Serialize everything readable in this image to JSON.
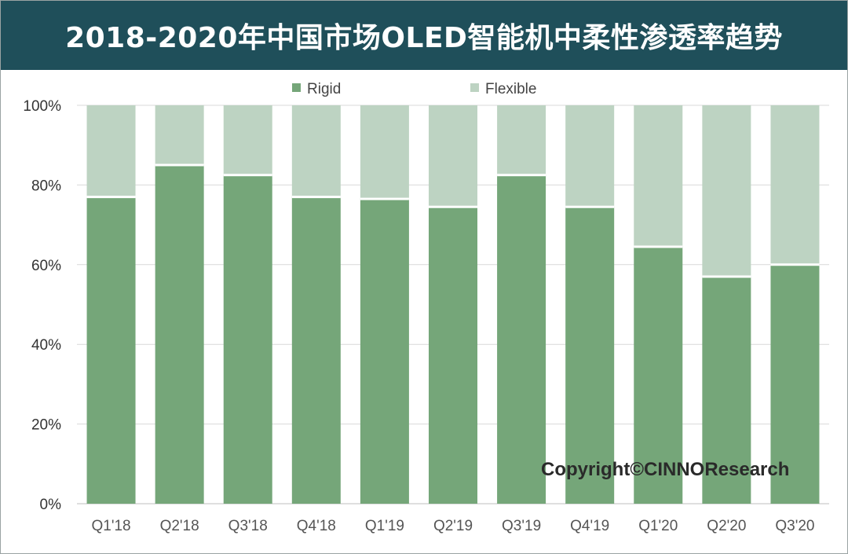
{
  "title": "2018-2020年中国市场OLED智能机中柔性渗透率趋势",
  "watermark": "Copyright©CINNOResearch",
  "colors": {
    "title_bg": "#1f4f5a",
    "rigid": "#75a679",
    "flexible": "#bdd3c2",
    "grid": "#d9d9d9"
  },
  "chart_data": {
    "type": "bar",
    "stacked": true,
    "categories": [
      "Q1'18",
      "Q2'18",
      "Q3'18",
      "Q4'18",
      "Q1'19",
      "Q2'19",
      "Q3'19",
      "Q4'19",
      "Q1'20",
      "Q2'20",
      "Q3'20"
    ],
    "series": [
      {
        "name": "Rigid",
        "values": [
          77,
          85,
          82.5,
          77,
          76.5,
          74.5,
          82.5,
          74.5,
          64.5,
          57,
          60
        ]
      },
      {
        "name": "Flexible",
        "values": [
          23,
          15,
          17.5,
          23,
          23.5,
          25.5,
          17.5,
          25.5,
          35.5,
          43,
          40
        ]
      }
    ],
    "title": "2018-2020年中国市场OLED智能机中柔性渗透率趋势",
    "xlabel": "",
    "ylabel": "",
    "ylim": [
      0,
      100
    ],
    "yticks": [
      "0%",
      "20%",
      "40%",
      "60%",
      "80%",
      "100%"
    ],
    "legend": "top-center",
    "grid": true
  }
}
